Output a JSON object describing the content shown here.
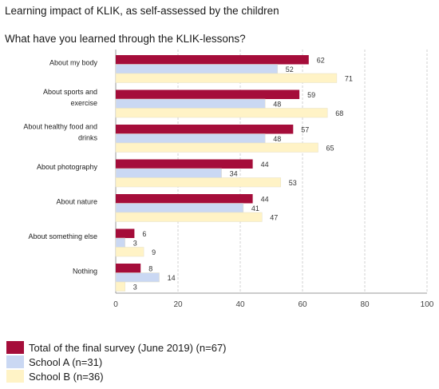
{
  "chart_data": {
    "type": "bar",
    "orientation": "horizontal",
    "title": "Learning impact of KLIK, as self-assessed by the children",
    "subtitle": "What have you learned through the KLIK-lessons?",
    "categories": [
      "About my body",
      "About sports and exercise",
      "About healthy food and drinks",
      "About photography",
      "About nature",
      "About something else",
      "Nothing"
    ],
    "series": [
      {
        "name": "Total of the final survey (June 2019) (n=67)",
        "color": "#a50d3a",
        "values": [
          62,
          59,
          57,
          44,
          44,
          6,
          8
        ]
      },
      {
        "name": "School A (n=31)",
        "color": "#cad8f3",
        "values": [
          52,
          48,
          48,
          34,
          41,
          3,
          14
        ]
      },
      {
        "name": "School B (n=36)",
        "color": "#fff3c6",
        "values": [
          71,
          68,
          65,
          53,
          47,
          9,
          3
        ]
      }
    ],
    "xlim": [
      0,
      100
    ],
    "xticks": [
      0,
      20,
      40,
      60,
      80,
      100
    ],
    "grid": "vertical",
    "legend_position": "bottom-left"
  }
}
